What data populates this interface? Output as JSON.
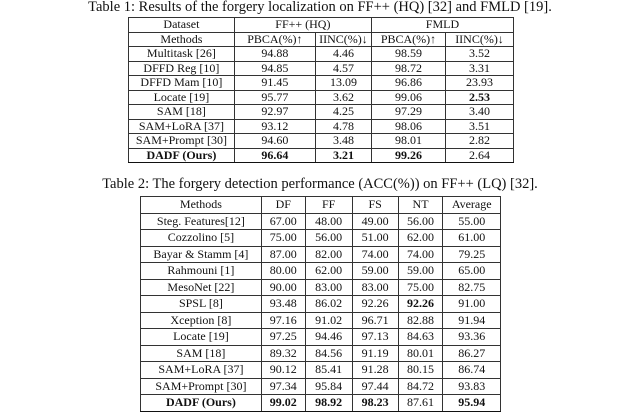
{
  "table1": {
    "caption": "Table 1: Results of the forgery localization on FF++ (HQ) [32] and FMLD [19].",
    "dataset_label": "Dataset",
    "datasets": [
      "FF++ (HQ)",
      "FMLD"
    ],
    "headers": [
      "Methods",
      "PBCA(%)↑",
      "IINC(%)↓",
      "PBCA(%)↑",
      "IINC(%)↓"
    ],
    "rows": [
      {
        "cells": [
          "Multitask [26]",
          "94.88",
          "4.46",
          "98.59",
          "3.52"
        ],
        "bold": []
      },
      {
        "cells": [
          "DFFD Reg [10]",
          "94.85",
          "4.57",
          "98.72",
          "3.31"
        ],
        "bold": []
      },
      {
        "cells": [
          "DFFD Mam [10]",
          "91.45",
          "13.09",
          "96.86",
          "23.93"
        ],
        "bold": []
      },
      {
        "cells": [
          "Locate [19]",
          "95.77",
          "3.62",
          "99.06",
          "2.53"
        ],
        "bold": [
          4
        ]
      },
      {
        "cells": [
          "SAM [18]",
          "92.97",
          "4.25",
          "97.29",
          "3.40"
        ],
        "bold": []
      },
      {
        "cells": [
          "SAM+LoRA [37]",
          "93.12",
          "4.78",
          "98.06",
          "3.51"
        ],
        "bold": []
      },
      {
        "cells": [
          "SAM+Prompt [30]",
          "94.60",
          "3.48",
          "98.01",
          "2.82"
        ],
        "bold": []
      },
      {
        "cells": [
          "DADF (Ours)",
          "96.64",
          "3.21",
          "99.26",
          "2.64"
        ],
        "bold": [
          0,
          1,
          2,
          3
        ]
      }
    ]
  },
  "table2": {
    "caption": "Table 2: The forgery detection performance (ACC(%)) on FF++ (LQ) [32].",
    "headers": [
      "Methods",
      "DF",
      "FF",
      "FS",
      "NT",
      "Average"
    ],
    "rows": [
      {
        "cells": [
          "Steg. Features[12]",
          "67.00",
          "48.00",
          "49.00",
          "56.00",
          "55.00"
        ],
        "bold": []
      },
      {
        "cells": [
          "Cozzolino [5]",
          "75.00",
          "56.00",
          "51.00",
          "62.00",
          "61.00"
        ],
        "bold": []
      },
      {
        "cells": [
          "Bayar & Stamm [4]",
          "87.00",
          "82.00",
          "74.00",
          "74.00",
          "79.25"
        ],
        "bold": []
      },
      {
        "cells": [
          "Rahmouni [1]",
          "80.00",
          "62.00",
          "59.00",
          "59.00",
          "65.00"
        ],
        "bold": []
      },
      {
        "cells": [
          "MesoNet [22]",
          "90.00",
          "83.00",
          "83.00",
          "75.00",
          "82.75"
        ],
        "bold": []
      },
      {
        "cells": [
          "SPSL [8]",
          "93.48",
          "86.02",
          "92.26",
          "92.26",
          "91.00"
        ],
        "bold": [
          4
        ]
      },
      {
        "cells": [
          "Xception [8]",
          "97.16",
          "91.02",
          "96.71",
          "82.88",
          "91.94"
        ],
        "bold": []
      },
      {
        "cells": [
          "Locate [19]",
          "97.25",
          "94.46",
          "97.13",
          "84.63",
          "93.36"
        ],
        "bold": []
      },
      {
        "cells": [
          "SAM [18]",
          "89.32",
          "84.56",
          "91.19",
          "80.01",
          "86.27"
        ],
        "bold": []
      },
      {
        "cells": [
          "SAM+LoRA [37]",
          "90.12",
          "85.41",
          "91.28",
          "80.15",
          "86.74"
        ],
        "bold": []
      },
      {
        "cells": [
          "SAM+Prompt [30]",
          "97.34",
          "95.84",
          "97.44",
          "84.72",
          "93.83"
        ],
        "bold": []
      },
      {
        "cells": [
          "DADF (Ours)",
          "99.02",
          "98.92",
          "98.23",
          "87.61",
          "95.94"
        ],
        "bold": [
          0,
          1,
          2,
          3,
          5
        ]
      }
    ]
  }
}
